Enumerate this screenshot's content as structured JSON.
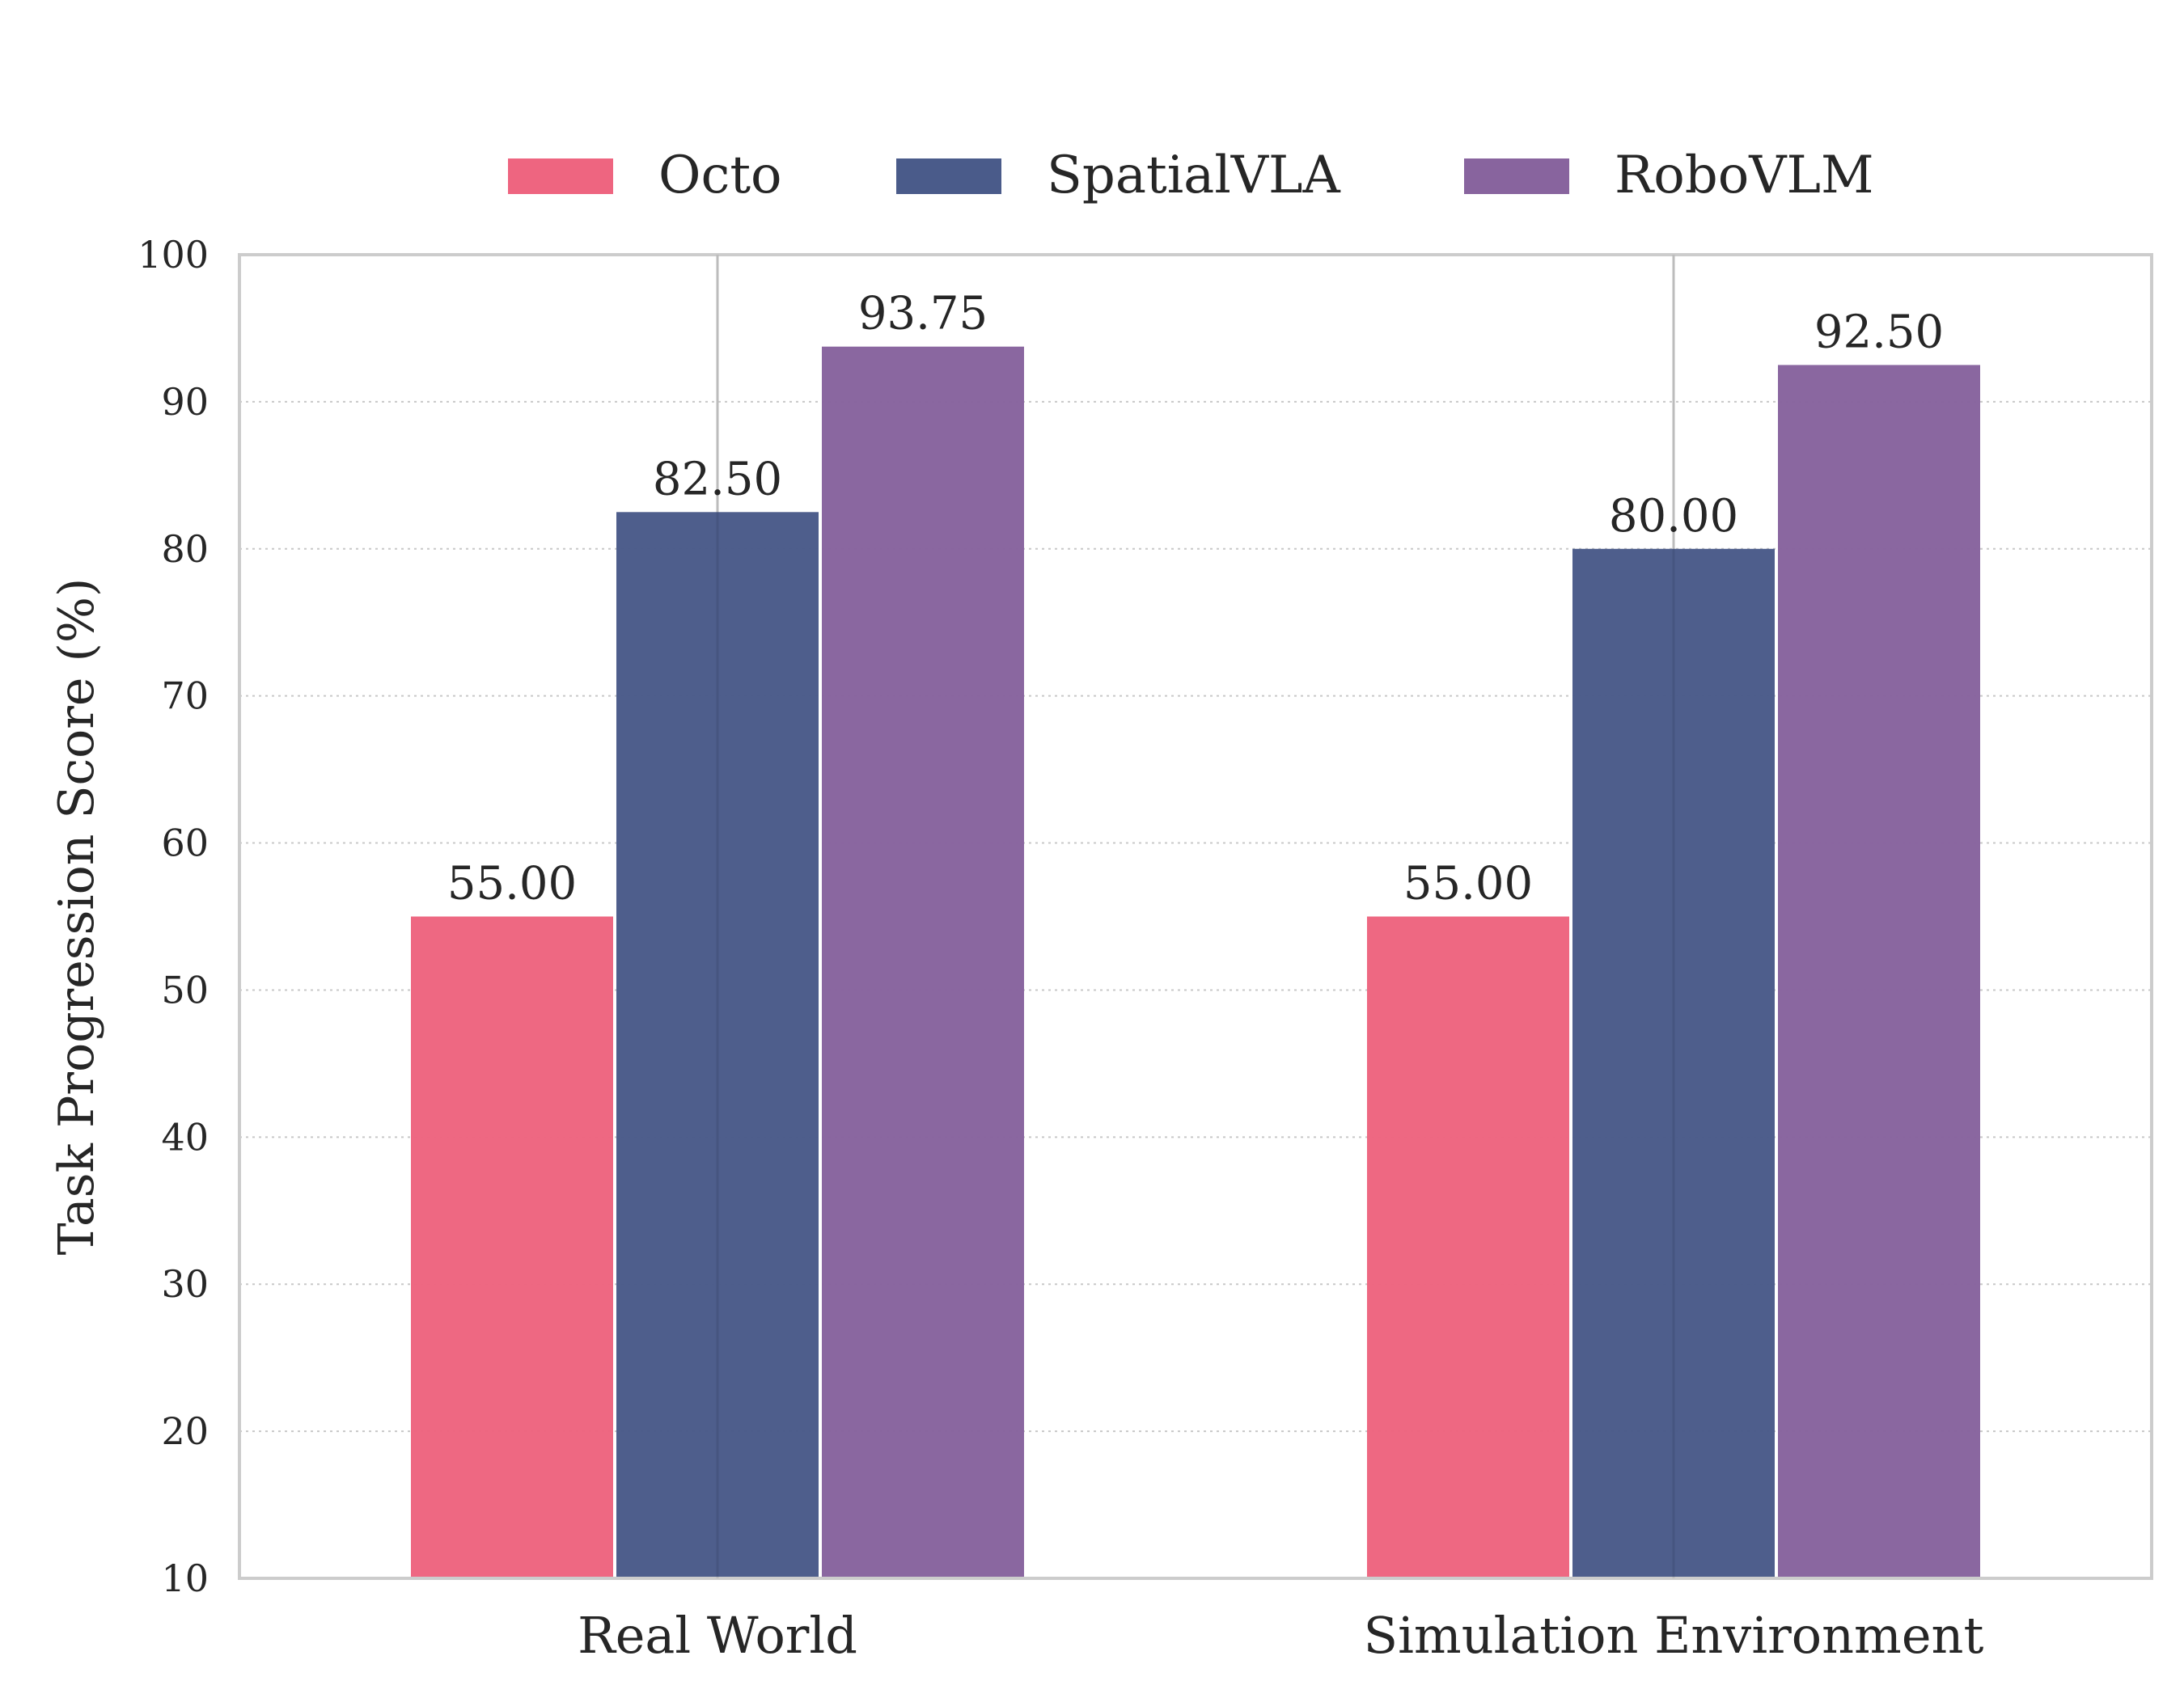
{
  "chart_data": {
    "type": "bar",
    "categories": [
      "Real World",
      "Simulation Environment"
    ],
    "series": [
      {
        "name": "Octo",
        "values": [
          55.0,
          55.0
        ],
        "color": "#EE6580"
      },
      {
        "name": "SpatialVLA",
        "values": [
          82.5,
          80.0
        ],
        "color": "#4A5B8A"
      },
      {
        "name": "RoboVLM",
        "values": [
          93.75,
          92.5
        ],
        "color": "#88649E"
      }
    ],
    "ylabel": "Task Progression Score (%)",
    "xlabel": "",
    "ylim": [
      10,
      100
    ],
    "yticks": [
      10,
      20,
      30,
      40,
      50,
      60,
      70,
      80,
      90,
      100
    ],
    "legend_position": "top-center",
    "grid": "y dotted",
    "value_label_decimals": 2
  }
}
